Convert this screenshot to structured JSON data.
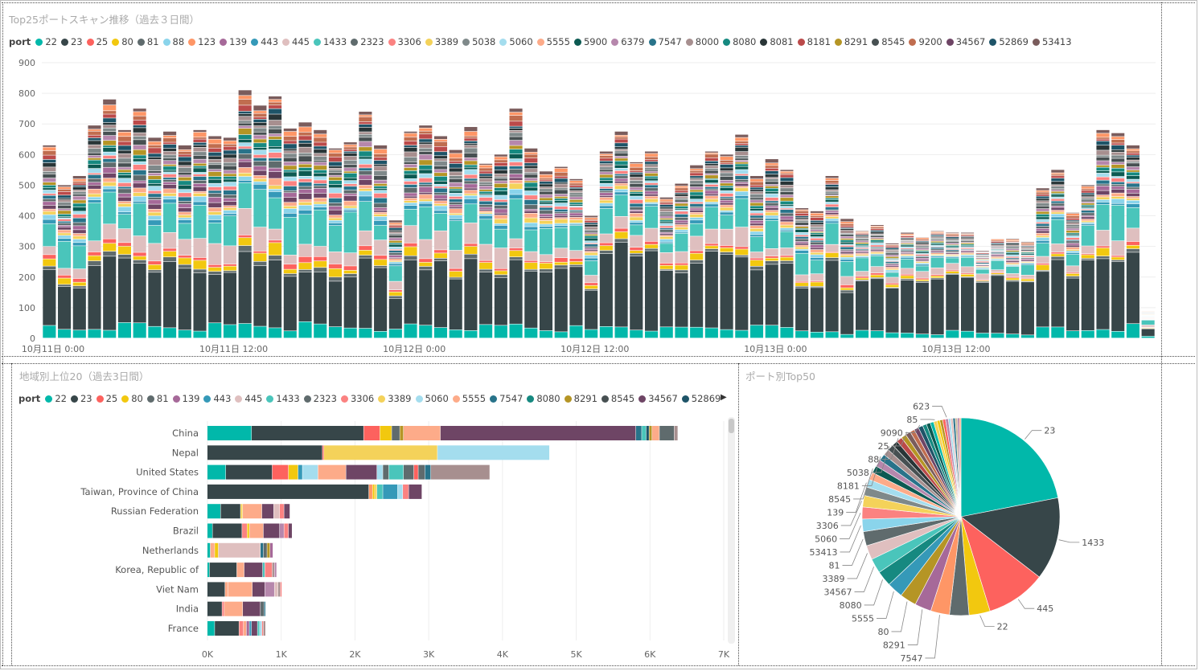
{
  "colors": {
    "22": "#01B8AA",
    "23": "#374649",
    "25": "#FD625E",
    "80": "#F2C80F",
    "81": "#5F6B6D",
    "88": "#8AD4EB",
    "123": "#FE9666",
    "139": "#A66999",
    "443": "#3599B8",
    "445": "#DFBFBF",
    "1433": "#4AC5BB",
    "2323": "#5F6B6D",
    "3306": "#FB8281",
    "3389": "#F4D25A",
    "5038": "#7F898A",
    "5060": "#A4DDEE",
    "5555": "#FDAB89",
    "5900": "#0C5A52",
    "6379": "#B687AC",
    "7547": "#28738A",
    "8000": "#A78F8F",
    "8080": "#168980",
    "8081": "#293537",
    "8181": "#BB4A4A",
    "8291": "#B59525",
    "8545": "#475052",
    "9200": "#C06D4F",
    "34567": "#6E4565",
    "52869": "#1E5468",
    "53413": "#7A5C5C",
    "pie_other": "#c9b79c"
  },
  "top": {
    "title": "Top25ポートスキャン推移（過去３日間）",
    "legend_title": "port",
    "legend": [
      "22",
      "23",
      "25",
      "80",
      "81",
      "88",
      "123",
      "139",
      "443",
      "445",
      "1433",
      "2323",
      "3306",
      "3389",
      "5038",
      "5060",
      "5555",
      "5900",
      "6379",
      "7547",
      "8000",
      "8080",
      "8081",
      "8181",
      "8291",
      "8545",
      "9200",
      "34567",
      "52869",
      "53413"
    ]
  },
  "bottom_left": {
    "title": "地域別上位20（過去3日間）",
    "legend_title": "port",
    "legend": [
      "22",
      "23",
      "25",
      "80",
      "81",
      "139",
      "443",
      "445",
      "1433",
      "2323",
      "3306",
      "3389",
      "5060",
      "5555",
      "7547",
      "8080",
      "8291",
      "8545",
      "34567",
      "52869"
    ]
  },
  "pie_title": "ポート別Top50",
  "chart_data": [
    {
      "type": "bar",
      "stacked": true,
      "title": "Top25ポートスキャン推移（過去３日間）",
      "ylim": [
        0,
        900
      ],
      "yticks": [
        0,
        100,
        200,
        300,
        400,
        500,
        600,
        700,
        800,
        900
      ],
      "xtick_labels": [
        "10月11日 0:00",
        "10月11日 12:00",
        "10月12日 0:00",
        "10月12日 12:00",
        "10月13日 0:00",
        "10月13日 12:00"
      ],
      "xtick_index": [
        0,
        12,
        24,
        36,
        48,
        60
      ],
      "totals": [
        630,
        500,
        530,
        695,
        780,
        680,
        750,
        655,
        675,
        630,
        680,
        660,
        655,
        810,
        760,
        790,
        685,
        705,
        680,
        620,
        640,
        740,
        630,
        385,
        675,
        695,
        660,
        615,
        690,
        570,
        600,
        750,
        620,
        545,
        560,
        520,
        400,
        610,
        675,
        575,
        610,
        460,
        505,
        565,
        610,
        600,
        665,
        530,
        585,
        550,
        425,
        415,
        530,
        390,
        350,
        370,
        310,
        345,
        330,
        350,
        345,
        345,
        285,
        325,
        325,
        315,
        490,
        550,
        410,
        500,
        680,
        670,
        630,
        90
      ],
      "dark_fraction": [
        0.29,
        0.28,
        0.26,
        0.3,
        0.31,
        0.31,
        0.26,
        0.27,
        0.32,
        0.32,
        0.28,
        0.24,
        0.26,
        0.29,
        0.26,
        0.28,
        0.26,
        0.23,
        0.25,
        0.24,
        0.26,
        0.31,
        0.33,
        0.26,
        0.31,
        0.26,
        0.33,
        0.27,
        0.34,
        0.3,
        0.26,
        0.28,
        0.3,
        0.35,
        0.37,
        0.37,
        0.32,
        0.39,
        0.41,
        0.42,
        0.43,
        0.4,
        0.35,
        0.37,
        0.41,
        0.41,
        0.36,
        0.34,
        0.34,
        0.38,
        0.33,
        0.35,
        0.44,
        0.35,
        0.46,
        0.46,
        0.47,
        0.5,
        0.51,
        0.52,
        0.53,
        0.51,
        0.58,
        0.58,
        0.53,
        0.55,
        0.37,
        0.4,
        0.42,
        0.46,
        0.34,
        0.34,
        0.37,
        0.27
      ]
    },
    {
      "type": "bar",
      "orientation": "horizontal",
      "stacked": true,
      "title": "地域別上位20（過去3日間）",
      "xlim": [
        0,
        7000
      ],
      "xtick_labels": [
        "0K",
        "1K",
        "2K",
        "3K",
        "4K",
        "5K",
        "6K",
        "7K"
      ],
      "categories": [
        "China",
        "Nepal",
        "United States",
        "Taiwan, Province of China",
        "Russian Federation",
        "Brazil",
        "Netherlands",
        "Korea, Republic of",
        "Viet Nam",
        "India",
        "France"
      ],
      "segments": [
        [
          [
            "22",
            600
          ],
          [
            "23",
            1520
          ],
          [
            "25",
            220
          ],
          [
            "80",
            160
          ],
          [
            "2323",
            110
          ],
          [
            "8291",
            50
          ],
          [
            "5555",
            500
          ],
          [
            "34567",
            2650
          ],
          [
            "7547",
            80
          ],
          [
            "1433",
            60
          ],
          [
            "52869",
            40
          ],
          [
            "8291",
            40
          ],
          [
            "5555",
            100
          ],
          [
            "2323",
            200
          ],
          [
            "8000",
            50
          ]
        ],
        [
          [
            "23",
            1560
          ],
          [
            "25",
            20
          ],
          [
            "3389",
            1540
          ],
          [
            "5060",
            1520
          ]
        ],
        [
          [
            "22",
            250
          ],
          [
            "23",
            630
          ],
          [
            "25",
            220
          ],
          [
            "80",
            130
          ],
          [
            "443",
            60
          ],
          [
            "5060",
            210
          ],
          [
            "5555",
            380
          ],
          [
            "34567",
            420
          ],
          [
            "5060",
            80
          ],
          [
            "2323",
            80
          ],
          [
            "1433",
            200
          ],
          [
            "2323",
            140
          ],
          [
            "25",
            60
          ],
          [
            "2323",
            90
          ],
          [
            "7547",
            80
          ],
          [
            "8000",
            800
          ]
        ],
        [
          [
            "23",
            2190
          ],
          [
            "123",
            50
          ],
          [
            "80",
            30
          ],
          [
            "3389",
            30
          ],
          [
            "1433",
            80
          ],
          [
            "443",
            200
          ],
          [
            "5060",
            70
          ],
          [
            "3306",
            80
          ],
          [
            "34567",
            180
          ]
        ],
        [
          [
            "22",
            180
          ],
          [
            "23",
            270
          ],
          [
            "3389",
            30
          ],
          [
            "5555",
            260
          ],
          [
            "34567",
            160
          ],
          [
            "445",
            80
          ],
          [
            "3306",
            60
          ],
          [
            "34567",
            80
          ]
        ],
        [
          [
            "22",
            70
          ],
          [
            "23",
            400
          ],
          [
            "3306",
            70
          ],
          [
            "80",
            30
          ],
          [
            "5555",
            190
          ],
          [
            "34567",
            220
          ],
          [
            "6379",
            60
          ],
          [
            "3306",
            60
          ],
          [
            "34567",
            50
          ]
        ],
        [
          [
            "22",
            40
          ],
          [
            "5555",
            60
          ],
          [
            "80",
            50
          ],
          [
            "445",
            570
          ],
          [
            "7547",
            40
          ],
          [
            "2323",
            50
          ],
          [
            "8291",
            40
          ],
          [
            "139",
            40
          ]
        ],
        [
          [
            "22",
            30
          ],
          [
            "23",
            370
          ],
          [
            "5555",
            100
          ],
          [
            "34567",
            250
          ],
          [
            "1433",
            30
          ],
          [
            "3306",
            100
          ],
          [
            "8000",
            30
          ],
          [
            "6379",
            30
          ]
        ],
        [
          [
            "23",
            240
          ],
          [
            "5555",
            40
          ],
          [
            "5555",
            330
          ],
          [
            "34567",
            170
          ],
          [
            "6379",
            130
          ],
          [
            "445",
            50
          ],
          [
            "8000",
            30
          ],
          [
            "3306",
            20
          ]
        ],
        [
          [
            "23",
            200
          ],
          [
            "3306",
            30
          ],
          [
            "5555",
            250
          ],
          [
            "34567",
            240
          ],
          [
            "2323",
            50
          ],
          [
            "7547",
            20
          ]
        ],
        [
          [
            "22",
            100
          ],
          [
            "23",
            330
          ],
          [
            "3306",
            60
          ],
          [
            "5555",
            40
          ],
          [
            "139",
            40
          ],
          [
            "443",
            30
          ],
          [
            "34567",
            80
          ],
          [
            "1433",
            30
          ],
          [
            "5060",
            30
          ],
          [
            "3306",
            20
          ],
          [
            "8000",
            30
          ]
        ]
      ]
    },
    {
      "type": "pie",
      "title": "ポート別Top50",
      "slices": [
        {
          "label": "23",
          "value": 23.5,
          "color_key": "22"
        },
        {
          "label": "1433",
          "value": 14.5,
          "color_key": "23"
        },
        {
          "label": "445",
          "value": 10.5,
          "color_key": "25"
        },
        {
          "label": "22",
          "value": 3.7,
          "color_key": "80"
        },
        {
          "label": "",
          "value": 3.4,
          "color_key": "81"
        },
        {
          "label": "7547",
          "value": 3.3,
          "color_key": "123"
        },
        {
          "label": "8291",
          "value": 2.9,
          "color_key": "139"
        },
        {
          "label": "80",
          "value": 2.9,
          "color_key": "8291"
        },
        {
          "label": "5555",
          "value": 2.8,
          "color_key": "443"
        },
        {
          "label": "8080",
          "value": 2.7,
          "color_key": "8080"
        },
        {
          "label": "34567",
          "value": 2.6,
          "color_key": "1433"
        },
        {
          "label": "3389",
          "value": 2.5,
          "color_key": "445"
        },
        {
          "label": "81",
          "value": 2.5,
          "color_key": "2323"
        },
        {
          "label": "53413",
          "value": 2.2,
          "color_key": "88"
        },
        {
          "label": "5060",
          "value": 2.1,
          "color_key": "3306"
        },
        {
          "label": "3306",
          "value": 2.0,
          "color_key": "3389"
        },
        {
          "label": "",
          "value": 1.5,
          "color_key": "5038"
        },
        {
          "label": "139",
          "value": 1.4,
          "color_key": "5060"
        },
        {
          "label": "",
          "value": 1.3,
          "color_key": "5555"
        },
        {
          "label": "8545",
          "value": 1.3,
          "color_key": "5900"
        },
        {
          "label": "",
          "value": 1.2,
          "color_key": "6379"
        },
        {
          "label": "8181",
          "value": 1.2,
          "color_key": "7547"
        },
        {
          "label": "",
          "value": 1.1,
          "color_key": "8000"
        },
        {
          "label": "5038",
          "value": 1.1,
          "color_key": "8545"
        },
        {
          "label": "",
          "value": 1.0,
          "color_key": "8081"
        },
        {
          "label": "88",
          "value": 1.0,
          "color_key": "8181"
        },
        {
          "label": "",
          "value": 0.9,
          "color_key": "8291"
        },
        {
          "label": "25",
          "value": 0.9,
          "color_key": "53413"
        },
        {
          "label": "",
          "value": 0.8,
          "color_key": "9200"
        },
        {
          "label": "",
          "value": 0.8,
          "color_key": "34567"
        },
        {
          "label": "9090",
          "value": 0.8,
          "color_key": "52869"
        },
        {
          "label": "",
          "value": 0.7,
          "color_key": "8080"
        },
        {
          "label": "",
          "value": 0.7,
          "color_key": "5900"
        },
        {
          "label": "",
          "value": 0.6,
          "color_key": "22"
        },
        {
          "label": "85",
          "value": 0.6,
          "color_key": "3389"
        },
        {
          "label": "",
          "value": 0.5,
          "color_key": "80"
        },
        {
          "label": "",
          "value": 0.5,
          "color_key": "8291"
        },
        {
          "label": "",
          "value": 0.5,
          "color_key": "25"
        },
        {
          "label": "623",
          "value": 0.5,
          "color_key": "6379"
        },
        {
          "label": "",
          "value": 0.4,
          "color_key": "5060"
        },
        {
          "label": "",
          "value": 0.4,
          "color_key": "445"
        },
        {
          "label": "",
          "value": 0.4,
          "color_key": "7547"
        },
        {
          "label": "",
          "value": 0.4,
          "color_key": "pie_other"
        },
        {
          "label": "",
          "value": 0.3,
          "color_key": "139"
        },
        {
          "label": "",
          "value": 0.3,
          "color_key": "5555"
        }
      ]
    }
  ]
}
